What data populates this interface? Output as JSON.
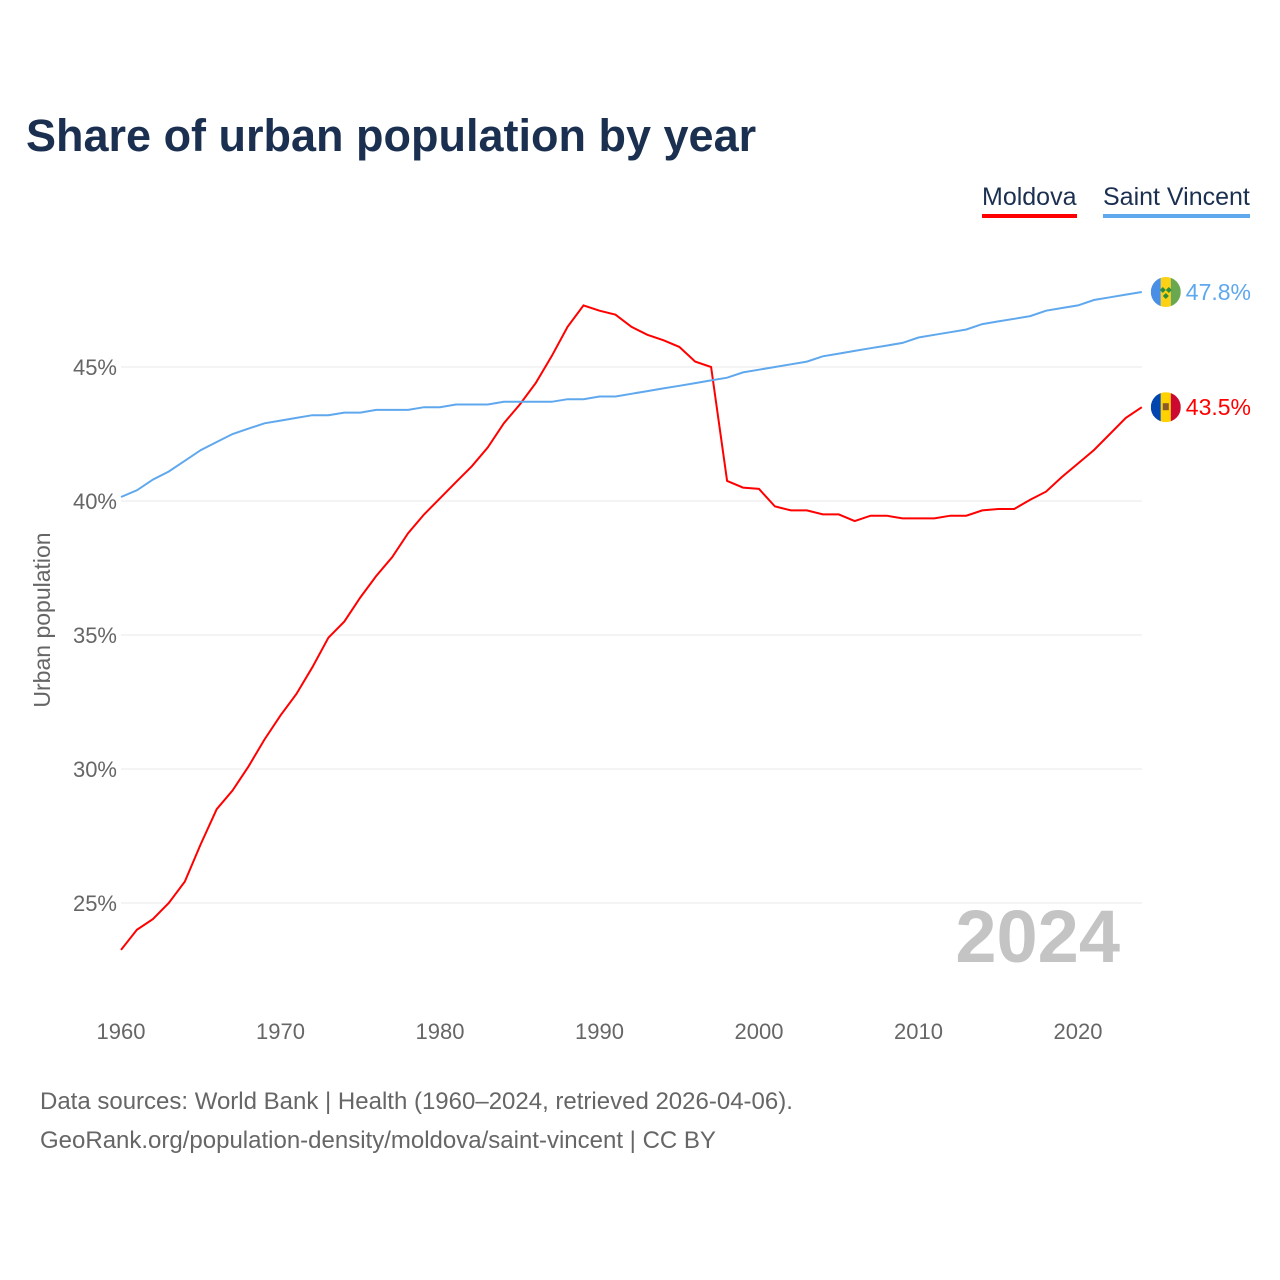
{
  "chart_data": {
    "type": "line",
    "title": "Share of urban population by year",
    "xlabel": "",
    "ylabel": "Urban population",
    "xlim": [
      1960,
      2024
    ],
    "ylim": [
      22,
      49.5
    ],
    "x_ticks": [
      1960,
      1970,
      1980,
      1990,
      2000,
      2010,
      2020
    ],
    "x_tick_labels": [
      "1960",
      "1970",
      "1980",
      "1990",
      "2000",
      "2010",
      "2020"
    ],
    "y_ticks": [
      25,
      30,
      35,
      40,
      45
    ],
    "y_tick_labels": [
      "25%",
      "30%",
      "35%",
      "40%",
      "45%"
    ],
    "grid": true,
    "legend_placement": "top-right",
    "watermark_year": "2024",
    "x": [
      1960,
      1961,
      1962,
      1963,
      1964,
      1965,
      1966,
      1967,
      1968,
      1969,
      1970,
      1971,
      1972,
      1973,
      1974,
      1975,
      1976,
      1977,
      1978,
      1979,
      1980,
      1981,
      1982,
      1983,
      1984,
      1985,
      1986,
      1987,
      1988,
      1989,
      1990,
      1991,
      1992,
      1993,
      1994,
      1995,
      1996,
      1997,
      1998,
      1999,
      2000,
      2001,
      2002,
      2003,
      2004,
      2005,
      2006,
      2007,
      2008,
      2009,
      2010,
      2011,
      2012,
      2013,
      2014,
      2015,
      2016,
      2017,
      2018,
      2019,
      2020,
      2021,
      2022,
      2023,
      2024
    ],
    "series": [
      {
        "name": "Moldova",
        "color": "#ff0000",
        "end_label": "43.5%",
        "flag": "moldova-flag",
        "values": [
          23.25,
          24.0,
          24.4,
          25.0,
          25.8,
          27.2,
          28.5,
          29.2,
          30.1,
          31.1,
          32.0,
          32.8,
          33.8,
          34.9,
          35.5,
          36.4,
          37.2,
          37.9,
          38.8,
          39.5,
          40.1,
          40.7,
          41.3,
          42.0,
          42.9,
          43.6,
          44.4,
          45.4,
          46.5,
          47.3,
          47.1,
          46.95,
          46.5,
          46.2,
          46.0,
          45.75,
          45.2,
          45.0,
          40.75,
          40.5,
          40.45,
          39.8,
          39.65,
          39.65,
          39.5,
          39.5,
          39.25,
          39.45,
          39.45,
          39.35,
          39.35,
          39.35,
          39.45,
          39.45,
          39.65,
          39.7,
          39.7,
          40.05,
          40.35,
          40.9,
          41.4,
          41.9,
          42.5,
          43.1,
          43.5
        ]
      },
      {
        "name": "Saint Vincent",
        "color": "#5fa8ee",
        "end_label": "47.8%",
        "flag": "saint-vincent-flag",
        "values": [
          40.15,
          40.4,
          40.8,
          41.1,
          41.5,
          41.9,
          42.2,
          42.5,
          42.7,
          42.9,
          43.0,
          43.1,
          43.2,
          43.2,
          43.3,
          43.3,
          43.4,
          43.4,
          43.4,
          43.5,
          43.5,
          43.6,
          43.6,
          43.6,
          43.7,
          43.7,
          43.7,
          43.7,
          43.8,
          43.8,
          43.9,
          43.9,
          44.0,
          44.1,
          44.2,
          44.3,
          44.4,
          44.5,
          44.6,
          44.8,
          44.9,
          45.0,
          45.1,
          45.2,
          45.4,
          45.5,
          45.6,
          45.7,
          45.8,
          45.9,
          46.1,
          46.2,
          46.3,
          46.4,
          46.6,
          46.7,
          46.8,
          46.9,
          47.1,
          47.2,
          47.3,
          47.5,
          47.6,
          47.7,
          47.8
        ]
      }
    ]
  },
  "footer": {
    "line1": "Data sources: World Bank | Health (1960–2024, retrieved 2026-04-06).",
    "line2": "GeoRank.org/population-density/moldova/saint-vincent | CC BY"
  }
}
